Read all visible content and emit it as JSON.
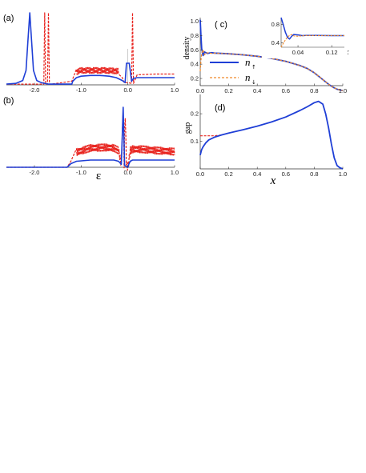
{
  "colors": {
    "up": "#1f3fd6",
    "down": "#e8231e",
    "orange": "#f08a2c",
    "axis": "#333333"
  },
  "panels": {
    "a": {
      "label": "(a)"
    },
    "b": {
      "label": "(b)"
    },
    "c": {
      "label": "( c)",
      "legend": [
        {
          "sym": "n",
          "sub": "↑"
        },
        {
          "sym": "n",
          "sub": "↓"
        }
      ]
    },
    "d": {
      "label": "(d)"
    }
  },
  "chart_data": [
    {
      "panel": "a",
      "type": "line",
      "xlim": [
        -2.6,
        1.0
      ],
      "x_ticks": [
        -2.0,
        -1.0,
        0.0,
        1.0
      ],
      "x_tick_labels": [
        "-2.0",
        "-1.0",
        "0.0",
        "1.0"
      ],
      "series": [
        {
          "name": "up",
          "style": "solid",
          "x": [
            -2.6,
            -2.4,
            -2.25,
            -2.18,
            -2.14,
            -2.1,
            -2.06,
            -2.02,
            -1.95,
            -1.85,
            -1.7,
            -1.2,
            -1.18,
            -1.1,
            -1.0,
            -0.8,
            -0.6,
            -0.4,
            -0.25,
            -0.12,
            -0.06,
            -0.03,
            0.03,
            0.08,
            0.12,
            0.2,
            0.4,
            0.7,
            1.0
          ],
          "y": [
            0.01,
            0.02,
            0.06,
            0.2,
            0.6,
            1.0,
            0.6,
            0.2,
            0.06,
            0.03,
            0.01,
            0.01,
            0.05,
            0.1,
            0.12,
            0.13,
            0.13,
            0.12,
            0.1,
            0.06,
            0.03,
            0.3,
            0.3,
            0.05,
            0.09,
            0.1,
            0.1,
            0.1,
            0.1
          ]
        },
        {
          "name": "down",
          "style": "dashed",
          "x": [
            -2.6,
            -1.8,
            -1.78,
            -1.76,
            -1.74,
            -1.72,
            -1.7,
            -1.68,
            -1.66,
            -1.64,
            -1.2,
            -1.1,
            -1.0,
            -0.5,
            -0.2,
            -0.12,
            -0.08,
            0.0,
            0.08,
            0.1,
            0.12,
            0.14,
            0.2,
            0.6,
            1.0
          ],
          "y": [
            0.01,
            0.01,
            1.0,
            0.01,
            0.01,
            0.01,
            1.0,
            0.01,
            0.01,
            0.01,
            0.05,
            0.18,
            0.2,
            0.2,
            0.19,
            0.1,
            0.03,
            0.03,
            0.02,
            1.0,
            0.02,
            0.05,
            0.14,
            0.15,
            0.15
          ],
          "ripple": {
            "from": -1.1,
            "to": -0.2,
            "amp": 0.04
          }
        }
      ]
    },
    {
      "panel": "b",
      "type": "line",
      "xlim": [
        -2.6,
        1.0
      ],
      "x_ticks": [
        -2.0,
        -1.0,
        0.0,
        1.0
      ],
      "x_tick_labels": [
        "-2.0",
        "-1.0",
        "0.0",
        "1.0"
      ],
      "xlabel": "ε",
      "series": [
        {
          "name": "up",
          "style": "solid",
          "x": [
            -2.6,
            -1.3,
            -1.22,
            -1.1,
            -0.8,
            -0.5,
            -0.3,
            -0.2,
            -0.14,
            -0.1,
            -0.07,
            0.0,
            0.02,
            0.05,
            0.1,
            0.3,
            0.6,
            1.0
          ],
          "y": [
            0.0,
            0.0,
            0.06,
            0.1,
            0.12,
            0.12,
            0.12,
            0.1,
            0.05,
            1.0,
            0.03,
            0.0,
            0.05,
            0.1,
            0.12,
            0.12,
            0.12,
            0.12
          ]
        },
        {
          "name": "down",
          "style": "dashed",
          "x": [
            -2.6,
            -1.3,
            -1.22,
            -1.1,
            -0.8,
            -0.5,
            -0.3,
            -0.2,
            -0.14,
            -0.1,
            -0.08,
            -0.06,
            -0.03,
            0.0,
            0.02,
            0.05,
            0.1,
            0.3,
            0.6,
            1.0
          ],
          "y": [
            0.0,
            0.0,
            0.1,
            0.25,
            0.32,
            0.33,
            0.32,
            0.28,
            0.05,
            1.0,
            0.05,
            1.0,
            0.03,
            0.0,
            0.1,
            0.28,
            0.3,
            0.3,
            0.28,
            0.26
          ],
          "ripple": {
            "from": -1.1,
            "to": 1.0,
            "amp": 0.06
          }
        }
      ]
    },
    {
      "panel": "c",
      "type": "line",
      "ylabel": "density",
      "xlim": [
        0.0,
        1.0
      ],
      "ylim": [
        0.1,
        1.05
      ],
      "x_ticks": [
        0.0,
        0.2,
        0.4,
        0.6,
        0.8,
        1.0
      ],
      "x_tick_labels": [
        "0.0",
        "0.2",
        "0.4",
        "0.6",
        "0.8",
        "1.0"
      ],
      "y_ticks": [
        0.2,
        0.4,
        0.6,
        0.8,
        1.0
      ],
      "y_tick_labels": [
        "0.2",
        "0.4",
        "0.6",
        "0.8",
        "1.0"
      ],
      "series": [
        {
          "name": "n↑",
          "style": "solid",
          "x": [
            0.0,
            0.005,
            0.01,
            0.02,
            0.03,
            0.05,
            0.08,
            0.1,
            0.2,
            0.3,
            0.4,
            0.5,
            0.6,
            0.7,
            0.75,
            0.8,
            0.85,
            0.9,
            0.93,
            0.96,
            1.0
          ],
          "y": [
            1.02,
            0.8,
            0.62,
            0.52,
            0.57,
            0.55,
            0.56,
            0.555,
            0.545,
            0.53,
            0.51,
            0.48,
            0.44,
            0.38,
            0.34,
            0.28,
            0.2,
            0.12,
            0.08,
            0.05,
            0.03
          ]
        },
        {
          "name": "n↓",
          "style": "dashed",
          "x": [
            0.0,
            0.005,
            0.01,
            0.02,
            0.03,
            0.05,
            0.08,
            0.1,
            0.2,
            0.3,
            0.4,
            0.5,
            0.6,
            0.7,
            0.75,
            0.8,
            0.85,
            0.9,
            0.93,
            0.96,
            1.0
          ],
          "y": [
            0.3,
            0.45,
            0.55,
            0.6,
            0.53,
            0.56,
            0.55,
            0.555,
            0.545,
            0.53,
            0.51,
            0.48,
            0.44,
            0.38,
            0.34,
            0.28,
            0.2,
            0.12,
            0.08,
            0.05,
            0.03
          ]
        }
      ],
      "inset": {
        "xlim": [
          0.0,
          0.15
        ],
        "ylim": [
          0.3,
          0.95
        ],
        "x_ticks": [
          0.04,
          0.12
        ],
        "x_tick_labels": [
          "0.04",
          "0.12"
        ],
        "y_ticks": [
          0.4,
          0.8
        ],
        "y_tick_labels": [
          "0.4",
          "0.8"
        ],
        "xlabel": "x",
        "series": [
          {
            "name": "n↑",
            "style": "solid",
            "x": [
              0.0,
              0.005,
              0.01,
              0.015,
              0.02,
              0.025,
              0.03,
              0.04,
              0.05,
              0.06,
              0.08,
              0.1,
              0.12,
              0.15
            ],
            "y": [
              0.95,
              0.8,
              0.63,
              0.52,
              0.48,
              0.54,
              0.58,
              0.57,
              0.555,
              0.56,
              0.558,
              0.556,
              0.555,
              0.555
            ]
          },
          {
            "name": "n↓",
            "style": "dashed",
            "x": [
              0.0,
              0.005,
              0.01,
              0.015,
              0.02,
              0.025,
              0.03,
              0.04,
              0.05,
              0.06,
              0.08,
              0.1,
              0.12,
              0.15
            ],
            "y": [
              0.3,
              0.38,
              0.46,
              0.52,
              0.56,
              0.58,
              0.55,
              0.54,
              0.552,
              0.556,
              0.555,
              0.555,
              0.555,
              0.555
            ]
          }
        ]
      }
    },
    {
      "panel": "d",
      "type": "line",
      "ylabel": "gap",
      "xlabel": "x",
      "xlim": [
        0.0,
        1.0
      ],
      "ylim": [
        0.0,
        0.27
      ],
      "x_ticks": [
        0.0,
        0.2,
        0.4,
        0.6,
        0.8,
        1.0
      ],
      "x_tick_labels": [
        "0.0",
        "0.2",
        "0.4",
        "0.6",
        "0.8",
        "1.0"
      ],
      "y_ticks": [
        0.1,
        0.2
      ],
      "y_tick_labels": [
        "0.1",
        "0.2"
      ],
      "series": [
        {
          "name": "up",
          "style": "solid",
          "x": [
            0.0,
            0.005,
            0.01,
            0.02,
            0.04,
            0.06,
            0.1,
            0.15,
            0.2,
            0.3,
            0.4,
            0.5,
            0.6,
            0.7,
            0.75,
            0.8,
            0.83,
            0.86,
            0.88,
            0.9,
            0.92,
            0.94,
            0.96,
            0.98,
            1.0
          ],
          "y": [
            0.05,
            0.06,
            0.07,
            0.08,
            0.095,
            0.105,
            0.115,
            0.123,
            0.13,
            0.142,
            0.155,
            0.17,
            0.188,
            0.212,
            0.225,
            0.24,
            0.245,
            0.235,
            0.2,
            0.15,
            0.09,
            0.04,
            0.012,
            0.004,
            0.0
          ]
        },
        {
          "name": "down",
          "style": "dashed",
          "x": [
            0.0,
            0.02,
            0.05,
            0.1,
            0.15,
            0.2
          ],
          "y": [
            0.12,
            0.12,
            0.12,
            0.12,
            0.123,
            0.13
          ]
        }
      ]
    }
  ]
}
